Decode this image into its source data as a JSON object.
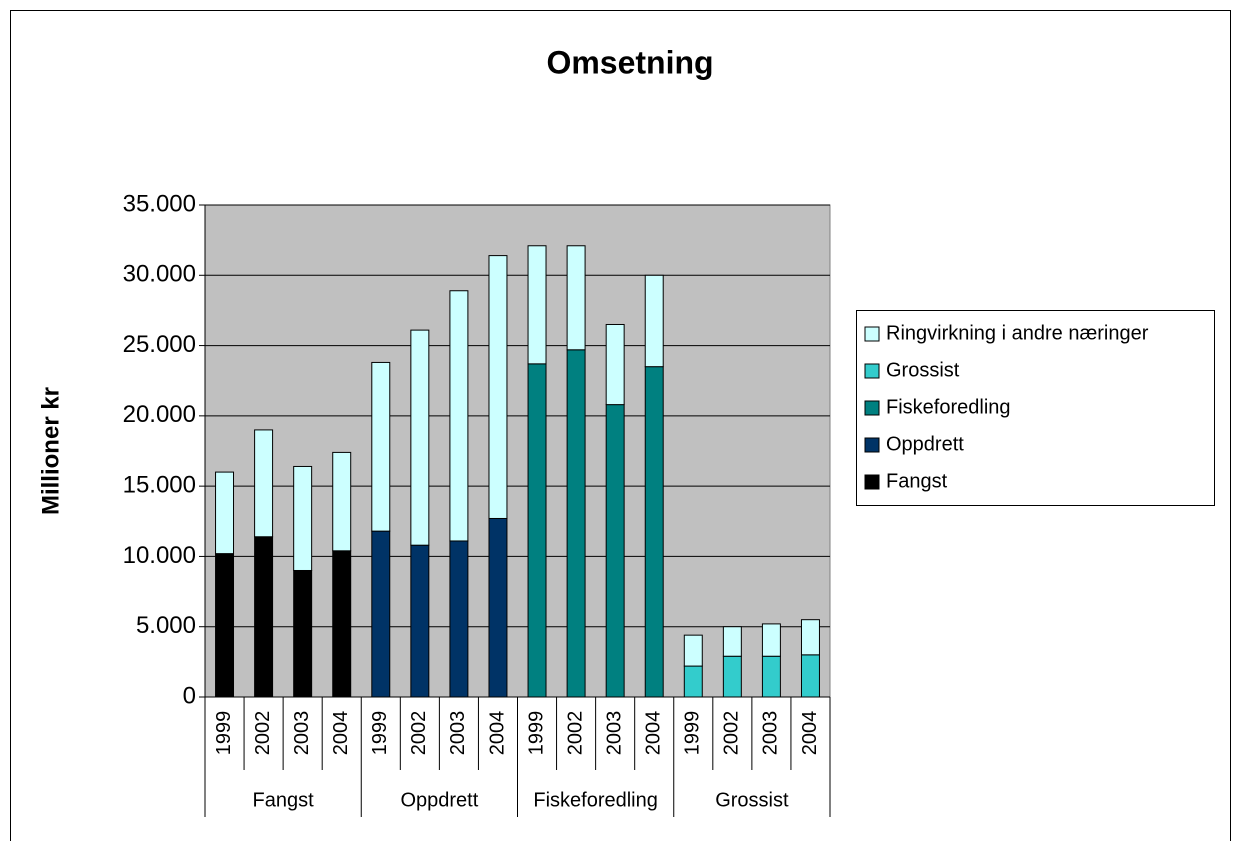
{
  "chart_data": {
    "type": "bar",
    "stacked": true,
    "title": "Omsetning",
    "y_label": "Millioner kr",
    "categories": [
      "1999",
      "2002",
      "2003",
      "2004",
      "1999",
      "2002",
      "2003",
      "2004",
      "1999",
      "2002",
      "2003",
      "2004",
      "1999",
      "2002",
      "2003",
      "2004"
    ],
    "groups": [
      "Fangst",
      "Oppdrett",
      "Fiskeforedling",
      "Grossist"
    ],
    "series": [
      {
        "name": "Fangst",
        "color": "#000000",
        "values": [
          10200,
          11400,
          9000,
          10400,
          null,
          null,
          null,
          null,
          null,
          null,
          null,
          null,
          null,
          null,
          null,
          null
        ]
      },
      {
        "name": "Oppdrett",
        "color": "#003366",
        "values": [
          null,
          null,
          null,
          null,
          11800,
          10800,
          11100,
          12700,
          null,
          null,
          null,
          null,
          null,
          null,
          null,
          null
        ]
      },
      {
        "name": "Fiskeforedling",
        "color": "#008080",
        "values": [
          null,
          null,
          null,
          null,
          null,
          null,
          null,
          null,
          23700,
          24700,
          20800,
          23500,
          null,
          null,
          null,
          null
        ]
      },
      {
        "name": "Grossist",
        "color": "#33CCCC",
        "values": [
          null,
          null,
          null,
          null,
          null,
          null,
          null,
          null,
          null,
          null,
          null,
          null,
          2200,
          2900,
          2900,
          3000
        ]
      },
      {
        "name": "Ringvirkning i andre næringer",
        "color": "#CCFFFF",
        "values": [
          5800,
          7600,
          7400,
          7000,
          12000,
          15300,
          17800,
          18700,
          8400,
          7400,
          5700,
          6500,
          2200,
          2100,
          2300,
          2500
        ]
      }
    ],
    "ylim": [
      0,
      35000
    ],
    "yticks": [
      0,
      {
        "value": 5000,
        "label": "5.000"
      },
      {
        "value": 10000,
        "label": "10.000"
      },
      {
        "value": 15000,
        "label": "15.000"
      },
      {
        "value": 20000,
        "label": "20.000"
      },
      {
        "value": 25000,
        "label": "25.000"
      },
      {
        "value": 30000,
        "label": "30.000"
      },
      {
        "value": 35000,
        "label": "35.000"
      }
    ],
    "grid": true,
    "plot_background": "#C0C0C0",
    "legend": "right"
  }
}
